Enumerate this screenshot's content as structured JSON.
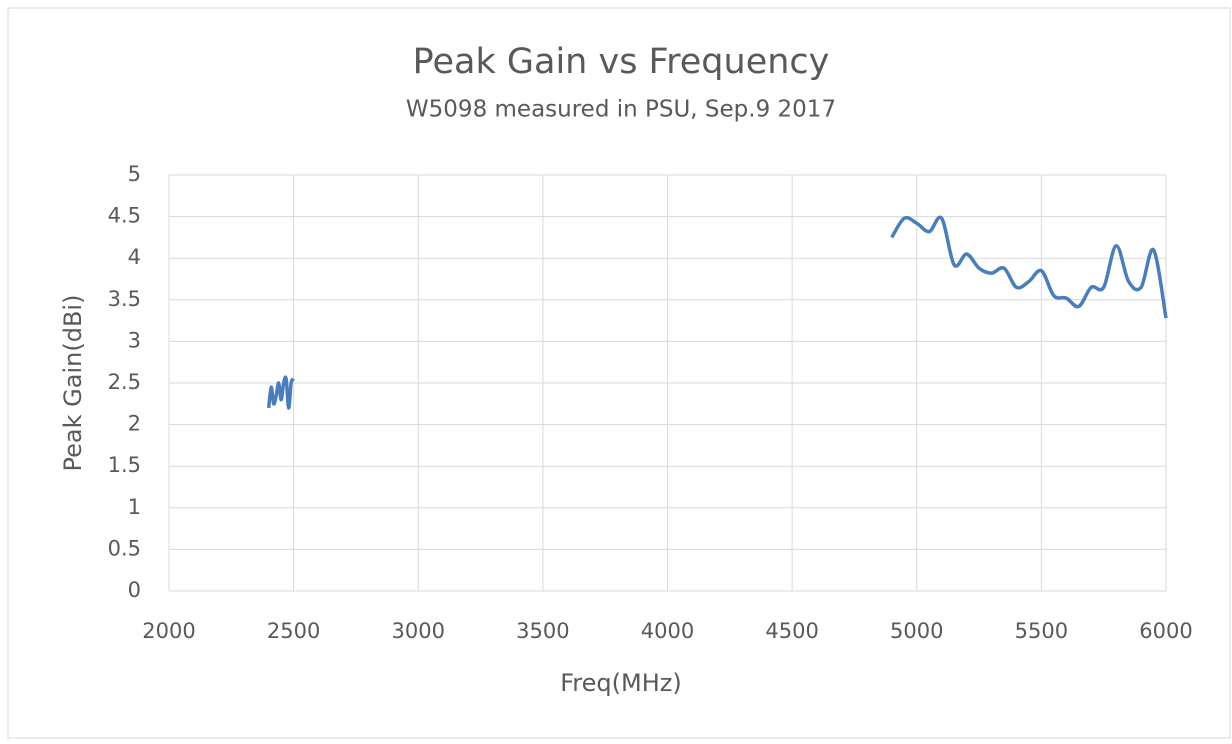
{
  "chart_data": {
    "type": "line",
    "title": "Peak Gain vs Frequency",
    "subtitle": "W5098 measured in PSU, Sep.9 2017",
    "x_label": "Freq(MHz)",
    "y_label": "Peak Gain(dBi)",
    "x": [
      2400,
      2410,
      2420,
      2430,
      2440,
      2450,
      2460,
      2470,
      2480,
      2490,
      2500,
      4000,
      4900,
      4950,
      5000,
      5050,
      5100,
      5150,
      5200,
      5250,
      5300,
      5350,
      5400,
      5450,
      5500,
      5550,
      5600,
      5650,
      5700,
      5750,
      5800,
      5850,
      5900,
      5950,
      6000
    ],
    "values": [
      2.2,
      2.45,
      2.25,
      2.35,
      2.5,
      2.3,
      2.5,
      2.55,
      2.2,
      2.5,
      2.55,
      null,
      4.25,
      4.48,
      4.42,
      4.32,
      4.48,
      3.92,
      4.05,
      3.88,
      3.82,
      3.88,
      3.65,
      3.72,
      3.85,
      3.55,
      3.52,
      3.42,
      3.65,
      3.65,
      4.15,
      3.72,
      3.65,
      4.1,
      3.28
    ],
    "color": "#4a7ebb",
    "xlim": [
      2000,
      6000
    ],
    "xticks": [
      2000,
      2500,
      3000,
      3500,
      4000,
      4500,
      5000,
      5500,
      6000
    ],
    "ylim": [
      0,
      5
    ],
    "yticks": [
      0,
      0.5,
      1,
      1.5,
      2,
      2.5,
      3,
      3.5,
      4,
      4.5,
      5
    ],
    "grid": true
  }
}
